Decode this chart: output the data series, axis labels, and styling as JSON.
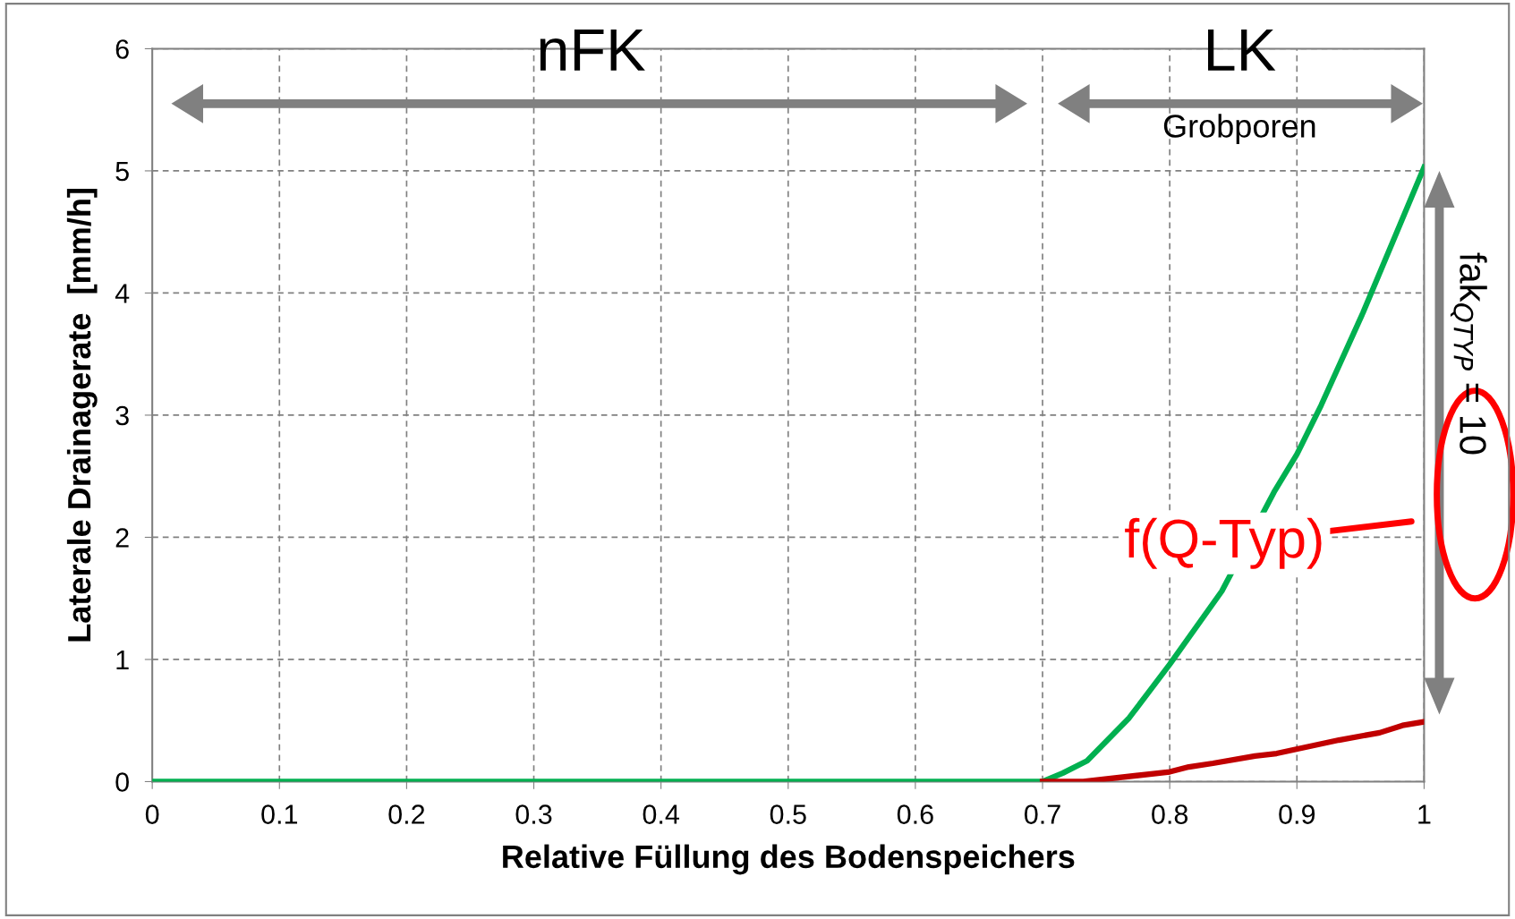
{
  "chart_data": {
    "type": "line",
    "xlabel": "Relative Füllung des Bodenspeichers",
    "ylabel": "Laterale Drainagerate  [mm/h]",
    "xlim": [
      0,
      1
    ],
    "xticks": [
      0,
      0.1,
      0.2,
      0.3,
      0.4,
      0.5,
      0.6,
      0.7,
      0.8,
      0.9,
      1
    ],
    "ylim": [
      0,
      6
    ],
    "yticks": [
      0,
      1,
      2,
      3,
      4,
      5,
      6
    ],
    "grid": true,
    "line_style": "solid",
    "marker": "none",
    "series": [
      {
        "color": "#00b050",
        "x": [
          0,
          0.7,
          0.716,
          0.735,
          0.768,
          0.8,
          0.841,
          0.882,
          0.9,
          0.919,
          0.952,
          1.0
        ],
        "values": [
          0,
          0,
          0.07,
          0.17,
          0.52,
          0.96,
          1.56,
          2.37,
          2.68,
          3.08,
          3.84,
          5.03
        ]
      },
      {
        "color": "#c00000",
        "x": [
          0.7,
          0.732,
          0.8,
          0.815,
          0.834,
          0.867,
          0.884,
          0.933,
          0.965,
          0.983,
          1.0
        ],
        "values": [
          0,
          0.0,
          0.08,
          0.12,
          0.15,
          0.21,
          0.23,
          0.34,
          0.4,
          0.46,
          0.49
        ]
      }
    ],
    "annotations": [
      "nFK",
      "LK",
      "Grobporen",
      "f(Q-Typ)",
      "fak$_{QTYP}$ = 10"
    ]
  }
}
